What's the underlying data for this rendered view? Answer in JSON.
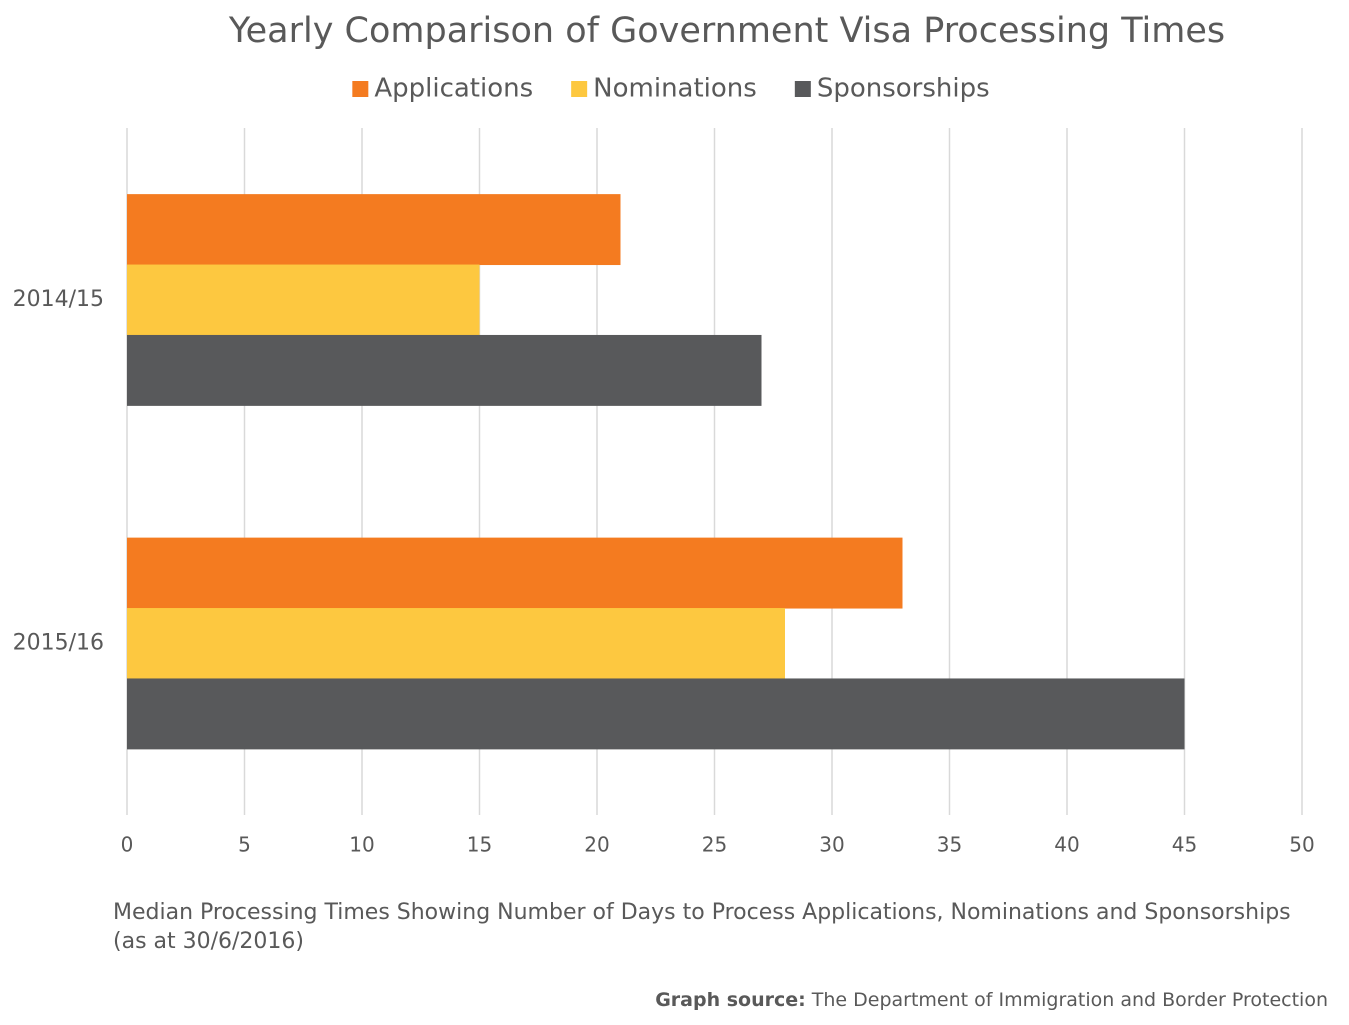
{
  "chart_data": {
    "type": "bar",
    "orientation": "horizontal",
    "title": "Yearly Comparison of Government Visa Processing Times",
    "categories": [
      "2014/15",
      "2015/16"
    ],
    "series": [
      {
        "name": "Applications",
        "color": "#f47b20",
        "values": [
          21,
          33
        ]
      },
      {
        "name": "Nominations",
        "color": "#fdc840",
        "values": [
          15,
          28
        ]
      },
      {
        "name": "Sponsorships",
        "color": "#58595b",
        "values": [
          27,
          45
        ]
      }
    ],
    "xlim": [
      0,
      50
    ],
    "xticks": [
      0,
      5,
      10,
      15,
      20,
      25,
      30,
      35,
      40,
      45,
      50
    ],
    "grid": true,
    "legend": "top",
    "caption_lines": [
      "Median Processing Times Showing Number of Days to Process Applications, Nominations and Sponsorships",
      "(as at 30/6/2016)"
    ],
    "source_label": "Graph source:",
    "source_text": "The Department of Immigration and Border Protection"
  }
}
